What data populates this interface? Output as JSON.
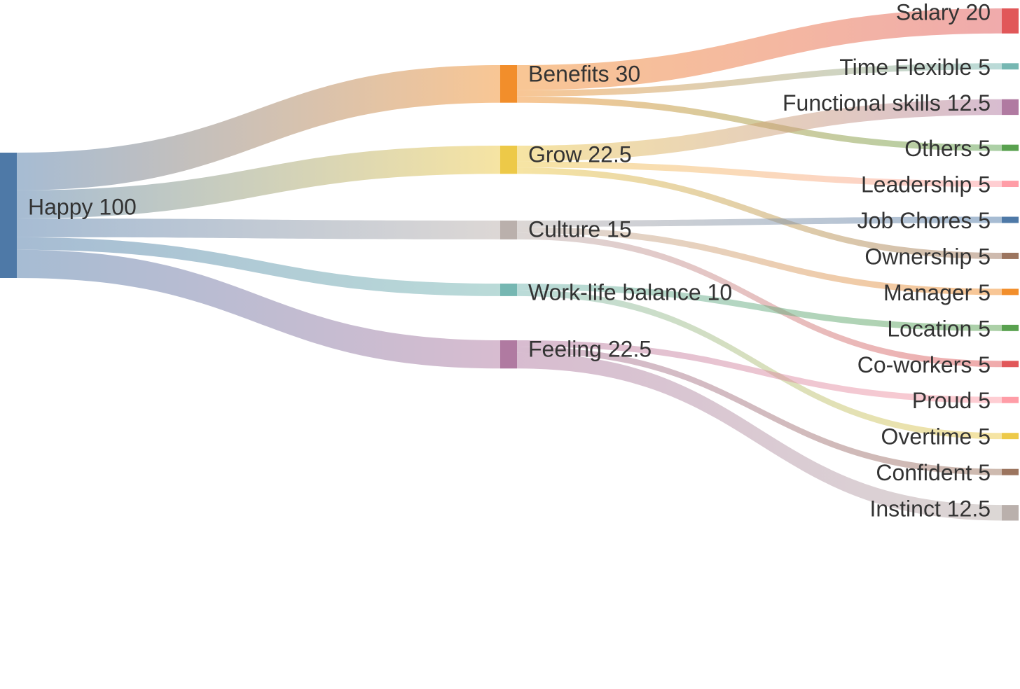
{
  "chart_data": {
    "type": "sankey",
    "title": "",
    "nodes": [
      {
        "id": "happy",
        "name": "Happy",
        "value": 100,
        "label": "Happy 100",
        "column": 0,
        "color": "#4e79a7"
      },
      {
        "id": "benefits",
        "name": "Benefits",
        "value": 30,
        "label": "Benefits 30",
        "column": 1,
        "color": "#f28e2b"
      },
      {
        "id": "grow",
        "name": "Grow",
        "value": 22.5,
        "label": "Grow 22.5",
        "column": 1,
        "color": "#edc948"
      },
      {
        "id": "culture",
        "name": "Culture",
        "value": 15,
        "label": "Culture 15",
        "column": 1,
        "color": "#bab0ac"
      },
      {
        "id": "worklife",
        "name": "Work-life balance",
        "value": 10,
        "label": "Work-life balance 10",
        "column": 1,
        "color": "#76b7b2"
      },
      {
        "id": "feeling",
        "name": "Feeling",
        "value": 22.5,
        "label": "Feeling 22.5",
        "column": 1,
        "color": "#b07aa1"
      },
      {
        "id": "salary",
        "name": "Salary",
        "value": 20,
        "label": "Salary 20",
        "column": 2,
        "color": "#e15759"
      },
      {
        "id": "timeflex",
        "name": "Time Flexible",
        "value": 5,
        "label": "Time Flexible 5",
        "column": 2,
        "color": "#76b7b2"
      },
      {
        "id": "functional",
        "name": "Functional skills",
        "value": 12.5,
        "label": "Functional skills 12.5",
        "column": 2,
        "color": "#b07aa1"
      },
      {
        "id": "others",
        "name": "Others",
        "value": 5,
        "label": "Others 5",
        "column": 2,
        "color": "#59a14f"
      },
      {
        "id": "leadership",
        "name": "Leadership",
        "value": 5,
        "label": "Leadership 5",
        "column": 2,
        "color": "#ff9da7"
      },
      {
        "id": "jobchores",
        "name": "Job Chores",
        "value": 5,
        "label": "Job Chores 5",
        "column": 2,
        "color": "#4e79a7"
      },
      {
        "id": "ownership",
        "name": "Ownership",
        "value": 5,
        "label": "Ownership 5",
        "column": 2,
        "color": "#9c755f"
      },
      {
        "id": "manager",
        "name": "Manager",
        "value": 5,
        "label": "Manager 5",
        "column": 2,
        "color": "#f28e2b"
      },
      {
        "id": "location",
        "name": "Location",
        "value": 5,
        "label": "Location 5",
        "column": 2,
        "color": "#59a14f"
      },
      {
        "id": "coworkers",
        "name": "Co-workers",
        "value": 5,
        "label": "Co-workers 5",
        "column": 2,
        "color": "#e15759"
      },
      {
        "id": "proud",
        "name": "Proud",
        "value": 5,
        "label": "Proud 5",
        "column": 2,
        "color": "#ff9da7"
      },
      {
        "id": "overtime",
        "name": "Overtime",
        "value": 5,
        "label": "Overtime 5",
        "column": 2,
        "color": "#edc948"
      },
      {
        "id": "confident",
        "name": "Confident",
        "value": 5,
        "label": "Confident 5",
        "column": 2,
        "color": "#9c755f"
      },
      {
        "id": "instinct",
        "name": "Instinct",
        "value": 12.5,
        "label": "Instinct 12.5",
        "column": 2,
        "color": "#bab0ac"
      }
    ],
    "links": [
      {
        "source": "happy",
        "target": "benefits",
        "value": 30
      },
      {
        "source": "happy",
        "target": "grow",
        "value": 22.5
      },
      {
        "source": "happy",
        "target": "culture",
        "value": 15
      },
      {
        "source": "happy",
        "target": "worklife",
        "value": 10
      },
      {
        "source": "happy",
        "target": "feeling",
        "value": 22.5
      },
      {
        "source": "benefits",
        "target": "salary",
        "value": 20
      },
      {
        "source": "benefits",
        "target": "timeflex",
        "value": 5
      },
      {
        "source": "benefits",
        "target": "others",
        "value": 5
      },
      {
        "source": "grow",
        "target": "functional",
        "value": 12.5
      },
      {
        "source": "grow",
        "target": "leadership",
        "value": 5
      },
      {
        "source": "grow",
        "target": "ownership",
        "value": 5
      },
      {
        "source": "culture",
        "target": "jobchores",
        "value": 5
      },
      {
        "source": "culture",
        "target": "manager",
        "value": 5
      },
      {
        "source": "culture",
        "target": "coworkers",
        "value": 5
      },
      {
        "source": "worklife",
        "target": "location",
        "value": 5
      },
      {
        "source": "worklife",
        "target": "overtime",
        "value": 5
      },
      {
        "source": "feeling",
        "target": "proud",
        "value": 5
      },
      {
        "source": "feeling",
        "target": "confident",
        "value": 5
      },
      {
        "source": "feeling",
        "target": "instinct",
        "value": 12.5
      }
    ]
  }
}
